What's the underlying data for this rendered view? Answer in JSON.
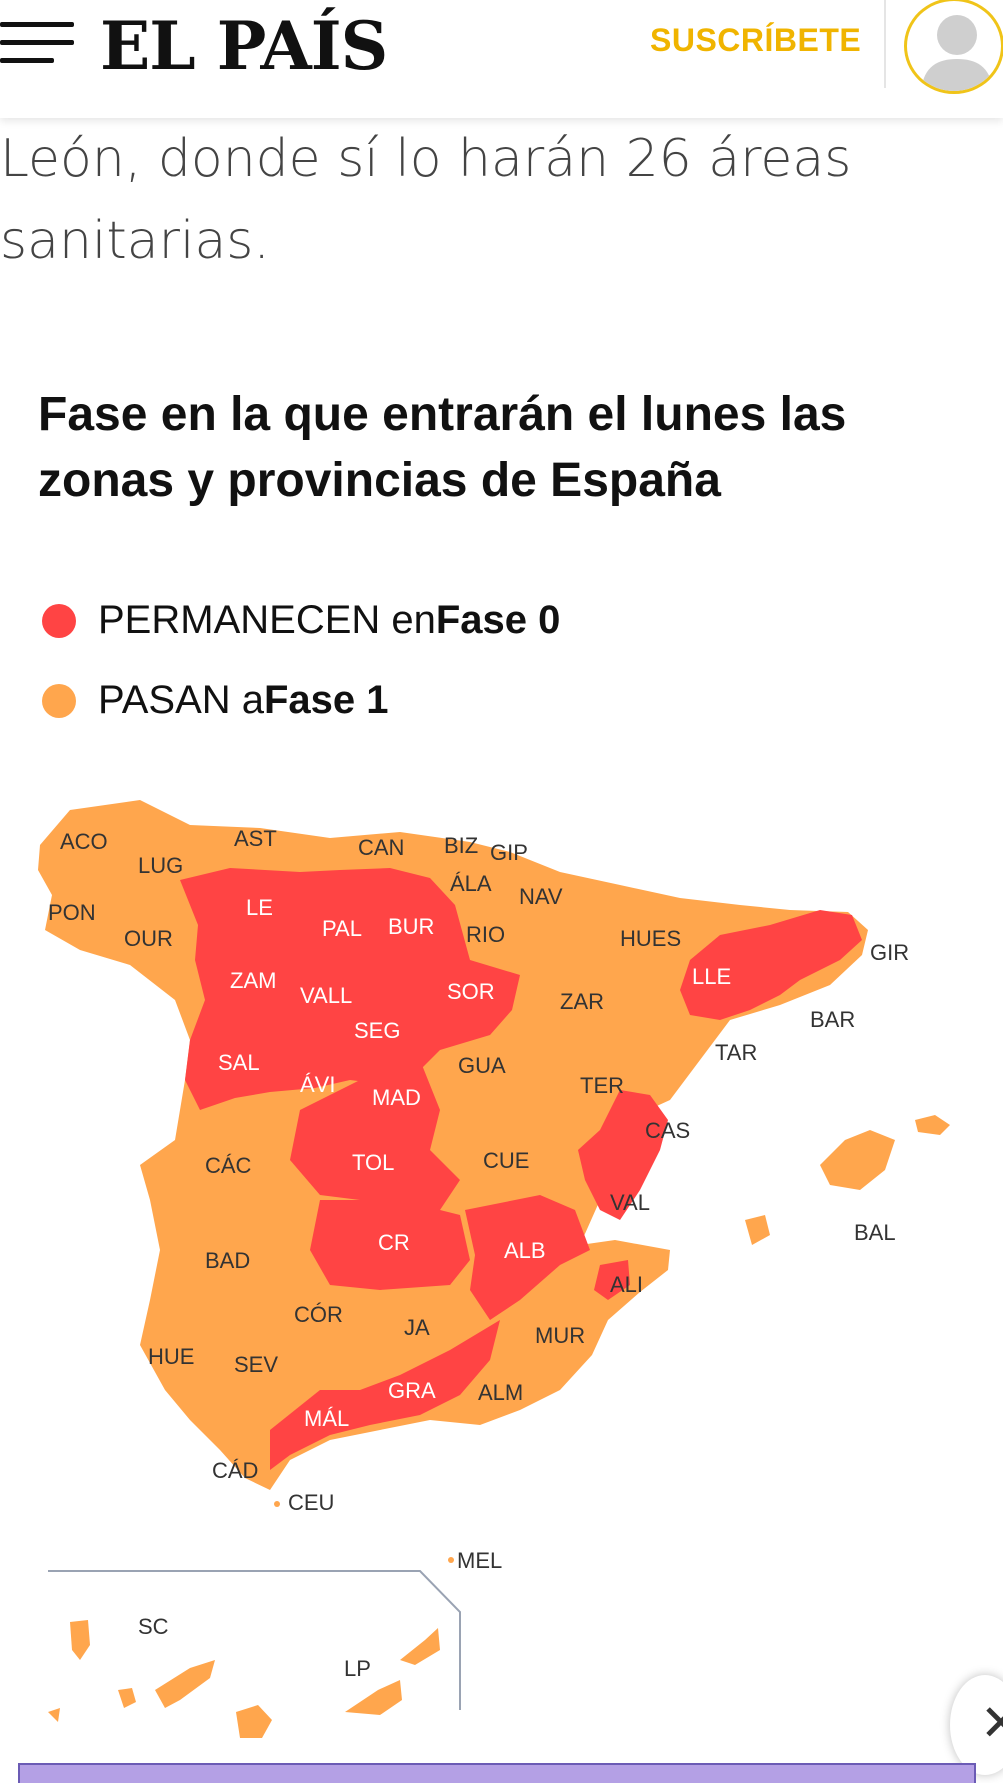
{
  "header": {
    "logo": "EL PAÍS",
    "subscribe_label": "SUSCRÍBETE"
  },
  "article": {
    "lead_text": "León, donde sí lo harán 26 áreas sanitarias."
  },
  "map_figure": {
    "title": "Fase en la que entrarán el lunes las zonas y provincias de España",
    "legend": [
      {
        "prefix": "PERMANECEN en ",
        "bold": "Fase 0",
        "color": "#ff4444"
      },
      {
        "prefix": "PASAN a ",
        "bold": "Fase 1",
        "color": "#ffa64d"
      }
    ],
    "colors": {
      "fase0": "#ff4444",
      "fase1": "#ffa64d"
    },
    "provinces": {
      "ACO": "ACO",
      "LUG": "LUG",
      "AST": "AST",
      "CAN": "CAN",
      "BIZ": "BIZ",
      "GIP": "GIP",
      "ALA": "ÁLA",
      "NAV": "NAV",
      "PON": "PON",
      "OUR": "OUR",
      "LE": "LE",
      "PAL": "PAL",
      "BUR": "BUR",
      "RIO": "RIO",
      "HUES": "HUES",
      "GIR": "GIR",
      "ZAM": "ZAM",
      "VALL": "VALL",
      "SOR": "SOR",
      "ZAR": "ZAR",
      "LLE": "LLE",
      "BAR": "BAR",
      "SEG": "SEG",
      "TAR": "TAR",
      "SAL": "SAL",
      "GUA": "GUA",
      "AVI": "ÁVI",
      "MAD": "MAD",
      "TER": "TER",
      "CAS": "CAS",
      "CAC": "CÁC",
      "TOL": "TOL",
      "CUE": "CUE",
      "VAL": "VAL",
      "BAL": "BAL",
      "CR": "CR",
      "ALB": "ALB",
      "BAD": "BAD",
      "ALI": "ALI",
      "COR": "CÓR",
      "JA": "JA",
      "MUR": "MUR",
      "HUE": "HUE",
      "SEV": "SEV",
      "GRA": "GRA",
      "ALM": "ALM",
      "MAL": "MÁL",
      "CAD": "CÁD",
      "CEU": "CEU",
      "MEL": "MEL",
      "SC": "SC",
      "LP": "LP"
    }
  }
}
